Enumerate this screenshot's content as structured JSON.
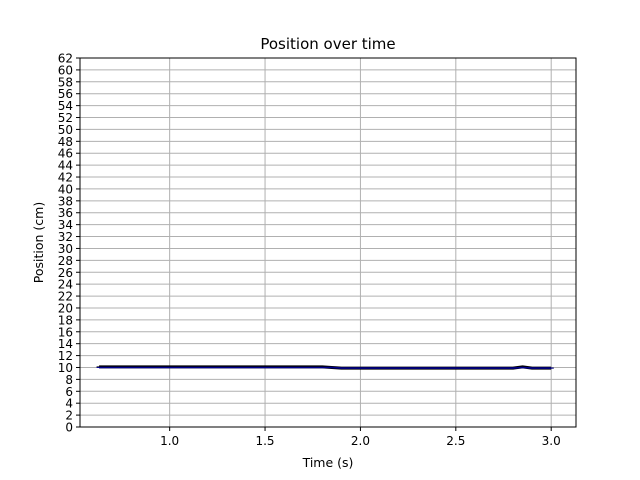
{
  "chart_data": {
    "type": "line",
    "title": "Position over time",
    "xlabel": "Time (s)",
    "ylabel": "Position (cm)",
    "xlim": [
      0.53,
      3.13
    ],
    "ylim": [
      0,
      62
    ],
    "xticks": [
      1.0,
      1.5,
      2.0,
      2.5,
      3.0
    ],
    "xtick_labels": [
      "1.0",
      "1.5",
      "2.0",
      "2.5",
      "3.0"
    ],
    "yticks": [
      0,
      2,
      4,
      6,
      8,
      10,
      12,
      14,
      16,
      18,
      20,
      22,
      24,
      26,
      28,
      30,
      32,
      34,
      36,
      38,
      40,
      42,
      44,
      46,
      48,
      50,
      52,
      54,
      56,
      58,
      60,
      62
    ],
    "ytick_labels": [
      "0",
      "2",
      "4",
      "6",
      "8",
      "10",
      "12",
      "14",
      "16",
      "18",
      "20",
      "22",
      "24",
      "26",
      "28",
      "30",
      "32",
      "34",
      "36",
      "38",
      "40",
      "42",
      "44",
      "46",
      "48",
      "50",
      "52",
      "54",
      "56",
      "58",
      "60",
      "62"
    ],
    "grid": true,
    "series": [
      {
        "color": "#000000",
        "x": [
          0.63,
          0.8,
          1.0,
          1.2,
          1.4,
          1.6,
          1.8,
          1.85,
          1.9,
          2.0,
          2.2,
          2.4,
          2.6,
          2.8,
          2.85,
          2.9,
          3.0
        ],
        "y": [
          10.1,
          10.1,
          10.1,
          10.1,
          10.1,
          10.1,
          10.1,
          10.0,
          9.9,
          9.9,
          9.9,
          9.9,
          9.9,
          9.9,
          10.1,
          9.9,
          9.9
        ]
      },
      {
        "color": "#00008b",
        "x": [
          0.63,
          0.8,
          1.0,
          1.2,
          1.4,
          1.6,
          1.8,
          1.85,
          1.9,
          2.0,
          2.2,
          2.4,
          2.6,
          2.8,
          2.85,
          2.9,
          3.0
        ],
        "y": [
          10.0,
          10.0,
          10.0,
          10.0,
          10.0,
          10.0,
          10.0,
          10.0,
          9.9,
          9.9,
          9.9,
          9.9,
          9.9,
          9.9,
          10.0,
          9.9,
          9.9
        ]
      }
    ]
  }
}
